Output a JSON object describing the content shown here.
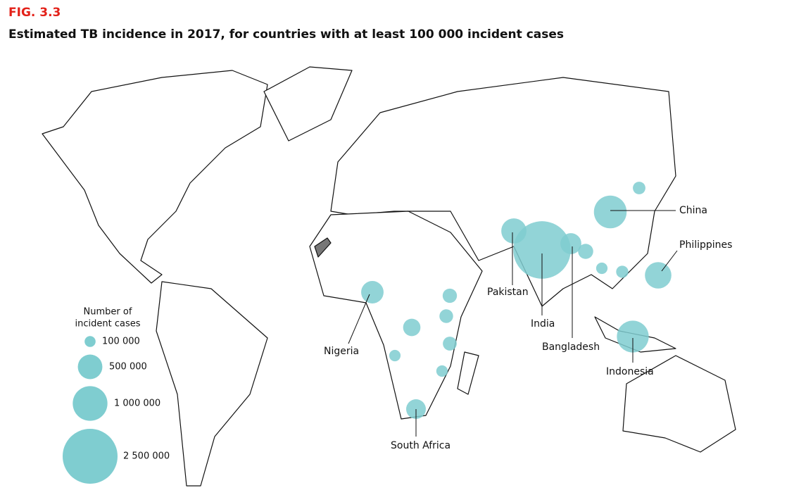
{
  "figure_label": "FIG. 3.3",
  "title": "Estimated TB incidence in 2017, for countries with at least 100 000 incident cases",
  "legend": {
    "title": [
      "Number of",
      "incident cases"
    ],
    "sizes": [
      {
        "value": 100000,
        "label": "100 000"
      },
      {
        "value": 500000,
        "label": "500 000"
      },
      {
        "value": 1000000,
        "label": "1 000 000"
      },
      {
        "value": 2500000,
        "label": "2 500 000"
      }
    ]
  },
  "countries": [
    {
      "label": "India",
      "cases": 2740000
    },
    {
      "label": "China",
      "cases": 889000
    },
    {
      "label": "Indonesia",
      "cases": 842000
    },
    {
      "label": "Philippines",
      "cases": 581000
    },
    {
      "label": "Pakistan",
      "cases": 525000
    },
    {
      "label": "Nigeria",
      "cases": 418000
    },
    {
      "label": "Bangladesh",
      "cases": 364000
    },
    {
      "label": "South Africa",
      "cases": 322000
    },
    {
      "cases": 250000
    },
    {
      "cases": 190000
    },
    {
      "cases": 170000
    },
    {
      "cases": 155000
    },
    {
      "cases": 160000
    },
    {
      "cases": 107000
    },
    {
      "cases": 108000
    },
    {
      "cases": 124000
    },
    {
      "cases": 131000
    },
    {
      "cases": 110000
    }
  ]
}
